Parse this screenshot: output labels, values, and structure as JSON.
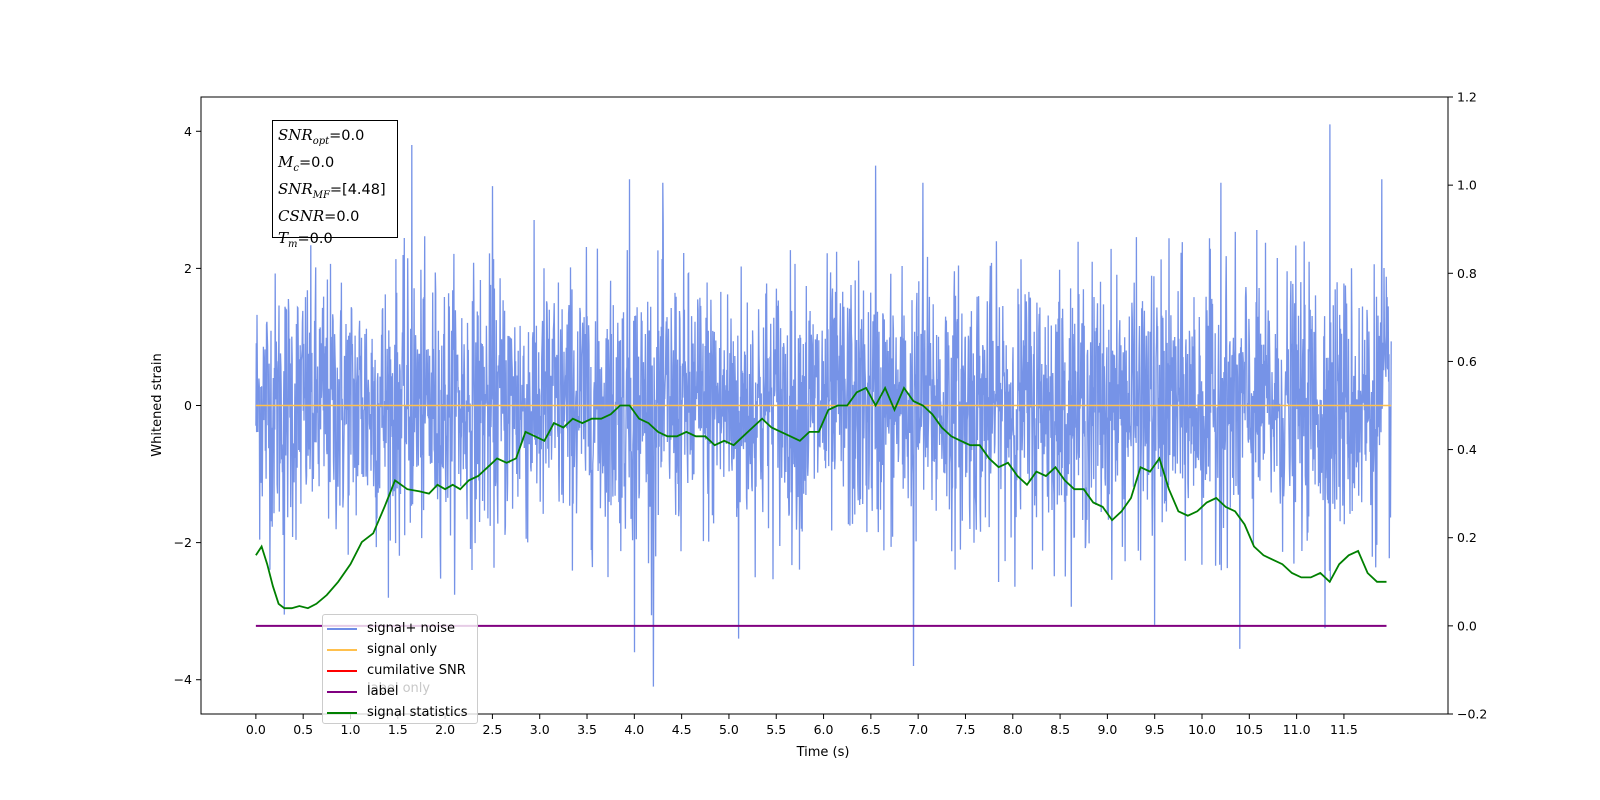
{
  "chart_data": {
    "type": "line",
    "xlabel": "Time (s)",
    "ylabel": "Whitened strain",
    "xlim": [
      -0.58,
      12.6
    ],
    "ylim": [
      -4.5,
      4.5
    ],
    "y2lim": [
      -0.2,
      1.2
    ],
    "x_ticks": [
      "0.0",
      "0.5",
      "1.0",
      "1.5",
      "2.0",
      "2.5",
      "3.0",
      "3.5",
      "4.0",
      "4.5",
      "5.0",
      "5.5",
      "6.0",
      "6.5",
      "7.0",
      "7.5",
      "8.0",
      "8.5",
      "9.0",
      "9.5",
      "10.0",
      "10.5",
      "11.0",
      "11.5"
    ],
    "y_ticks": [
      "−4",
      "−2",
      "0",
      "2",
      "4"
    ],
    "y2_ticks": [
      "−0.2",
      "0.0",
      "0.2",
      "0.4",
      "0.6",
      "0.8",
      "1.0",
      "1.2"
    ],
    "grid": false,
    "legend_placement": "lower-left",
    "series": [
      {
        "name": "signal+ noise",
        "color": "#6f8de6",
        "axis": "left",
        "description_values": "dense noise, roughly ±2 with spikes to ±4",
        "spikes": [
          [
            1.65,
            3.8
          ],
          [
            3.95,
            3.3
          ],
          [
            4.3,
            3.25
          ],
          [
            6.55,
            3.5
          ],
          [
            7.05,
            3.25
          ],
          [
            10.2,
            3.25
          ],
          [
            11.35,
            4.1
          ],
          [
            11.9,
            3.3
          ],
          [
            2.5,
            3.2
          ],
          [
            9.5,
            3.45
          ],
          [
            4.0,
            -3.6
          ],
          [
            4.2,
            -4.1
          ],
          [
            5.1,
            -3.4
          ],
          [
            6.95,
            -3.8
          ],
          [
            10.4,
            -3.55
          ],
          [
            11.3,
            -3.25
          ],
          [
            9.5,
            -3.2
          ],
          [
            0.3,
            -3.05
          ]
        ]
      },
      {
        "name": "signal only",
        "color": "#ffc04d",
        "axis": "left",
        "x": [
          0.0,
          12.0
        ],
        "y": [
          0.0,
          0.0
        ]
      },
      {
        "name": "cumilative SNR",
        "color": "#ff0000",
        "axis": "left",
        "x": [],
        "y": []
      },
      {
        "name": "label",
        "color": "#800080",
        "axis": "right",
        "x": [
          0.0,
          11.95
        ],
        "y": [
          0.0,
          0.0
        ]
      },
      {
        "name": "signal statistics",
        "color": "#008000",
        "axis": "right",
        "x": [
          0.0,
          0.06,
          0.12,
          0.18,
          0.24,
          0.3,
          0.38,
          0.46,
          0.55,
          0.64,
          0.75,
          0.87,
          1.0,
          1.12,
          1.24,
          1.36,
          1.47,
          1.6,
          1.73,
          1.83,
          1.92,
          2.0,
          2.08,
          2.16,
          2.25,
          2.35,
          2.45,
          2.55,
          2.65,
          2.75,
          2.85,
          2.95,
          3.05,
          3.15,
          3.25,
          3.35,
          3.45,
          3.55,
          3.65,
          3.75,
          3.85,
          3.95,
          4.05,
          4.15,
          4.25,
          4.35,
          4.45,
          4.55,
          4.65,
          4.75,
          4.85,
          4.95,
          5.05,
          5.15,
          5.25,
          5.35,
          5.45,
          5.55,
          5.65,
          5.75,
          5.85,
          5.95,
          6.05,
          6.15,
          6.25,
          6.35,
          6.45,
          6.55,
          6.65,
          6.75,
          6.85,
          6.95,
          7.05,
          7.15,
          7.25,
          7.35,
          7.45,
          7.55,
          7.65,
          7.75,
          7.85,
          7.95,
          8.05,
          8.15,
          8.25,
          8.35,
          8.45,
          8.55,
          8.65,
          8.75,
          8.85,
          8.95,
          9.05,
          9.15,
          9.25,
          9.35,
          9.45,
          9.55,
          9.65,
          9.75,
          9.85,
          9.95,
          10.05,
          10.15,
          10.25,
          10.35,
          10.45,
          10.55,
          10.65,
          10.75,
          10.85,
          10.95,
          11.05,
          11.15,
          11.25,
          11.35,
          11.45,
          11.55,
          11.65,
          11.75,
          11.85,
          11.95
        ],
        "y": [
          0.16,
          0.18,
          0.14,
          0.09,
          0.05,
          0.04,
          0.04,
          0.045,
          0.04,
          0.05,
          0.07,
          0.1,
          0.14,
          0.19,
          0.21,
          0.27,
          0.33,
          0.31,
          0.305,
          0.3,
          0.32,
          0.31,
          0.32,
          0.31,
          0.33,
          0.34,
          0.36,
          0.38,
          0.37,
          0.38,
          0.44,
          0.43,
          0.42,
          0.46,
          0.45,
          0.47,
          0.46,
          0.47,
          0.47,
          0.48,
          0.5,
          0.5,
          0.47,
          0.46,
          0.44,
          0.43,
          0.43,
          0.44,
          0.43,
          0.43,
          0.41,
          0.42,
          0.41,
          0.43,
          0.45,
          0.47,
          0.45,
          0.44,
          0.43,
          0.42,
          0.44,
          0.44,
          0.49,
          0.5,
          0.5,
          0.53,
          0.54,
          0.5,
          0.54,
          0.49,
          0.54,
          0.51,
          0.5,
          0.48,
          0.45,
          0.43,
          0.42,
          0.41,
          0.41,
          0.38,
          0.36,
          0.37,
          0.34,
          0.32,
          0.35,
          0.34,
          0.36,
          0.33,
          0.31,
          0.31,
          0.28,
          0.27,
          0.24,
          0.26,
          0.29,
          0.36,
          0.35,
          0.38,
          0.31,
          0.26,
          0.25,
          0.26,
          0.28,
          0.29,
          0.27,
          0.26,
          0.23,
          0.18,
          0.16,
          0.15,
          0.14,
          0.12,
          0.11,
          0.11,
          0.12,
          0.1,
          0.14,
          0.16,
          0.17,
          0.12,
          0.1,
          0.1
        ]
      }
    ]
  },
  "stats_box": {
    "line1_main": "SNR",
    "line1_sub": "opt",
    "line1_val": "=0.0",
    "line2_main": "M",
    "line2_sub": "c",
    "line2_val": "=0.0",
    "line3_main": "SNR",
    "line3_sub": "MF",
    "line3_val": "=[4.48]",
    "line4_main": "CSNR",
    "line4_val": "=0.0",
    "line5_main": "T",
    "line5_sub": "m",
    "line5_val": "=0.0"
  },
  "legend": {
    "ghost_text": "label only",
    "items": [
      "signal+ noise",
      "signal only",
      "cumilative SNR",
      "label",
      "signal statistics"
    ]
  }
}
